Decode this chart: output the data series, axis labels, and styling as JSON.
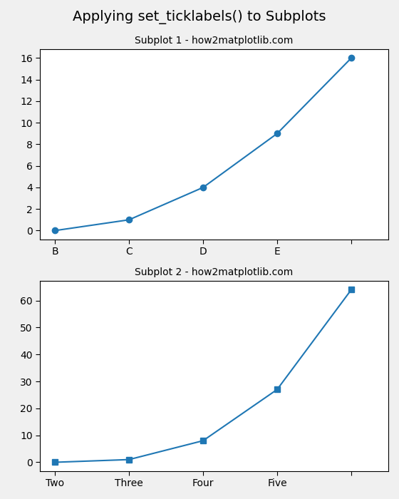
{
  "title": "Applying set_ticklabels() to Subplots",
  "title_fontsize": 14,
  "subplot1": {
    "title": "Subplot 1 - how2matplotlib.com",
    "title_fontsize": 10,
    "x": [
      0,
      1,
      2,
      3,
      4
    ],
    "y": [
      0,
      1,
      4,
      9,
      16
    ],
    "xtick_positions": [
      0,
      1,
      2,
      3,
      4
    ],
    "xtick_labels": [
      "B",
      "C",
      "D",
      "E",
      ""
    ],
    "marker": "o",
    "color": "#1f77b4",
    "linewidth": 1.5,
    "markersize": 6
  },
  "subplot2": {
    "title": "Subplot 2 - how2matplotlib.com",
    "title_fontsize": 10,
    "x": [
      0,
      1,
      2,
      3,
      4
    ],
    "y": [
      0,
      1,
      8,
      27,
      64
    ],
    "xtick_positions": [
      0,
      1,
      2,
      3,
      4
    ],
    "xtick_labels": [
      "Two",
      "Three",
      "Four",
      "Five",
      ""
    ],
    "marker": "s",
    "color": "#1f77b4",
    "linewidth": 1.5,
    "markersize": 6
  },
  "fig_bg": "#f0f0f0",
  "axes_bg": "white"
}
